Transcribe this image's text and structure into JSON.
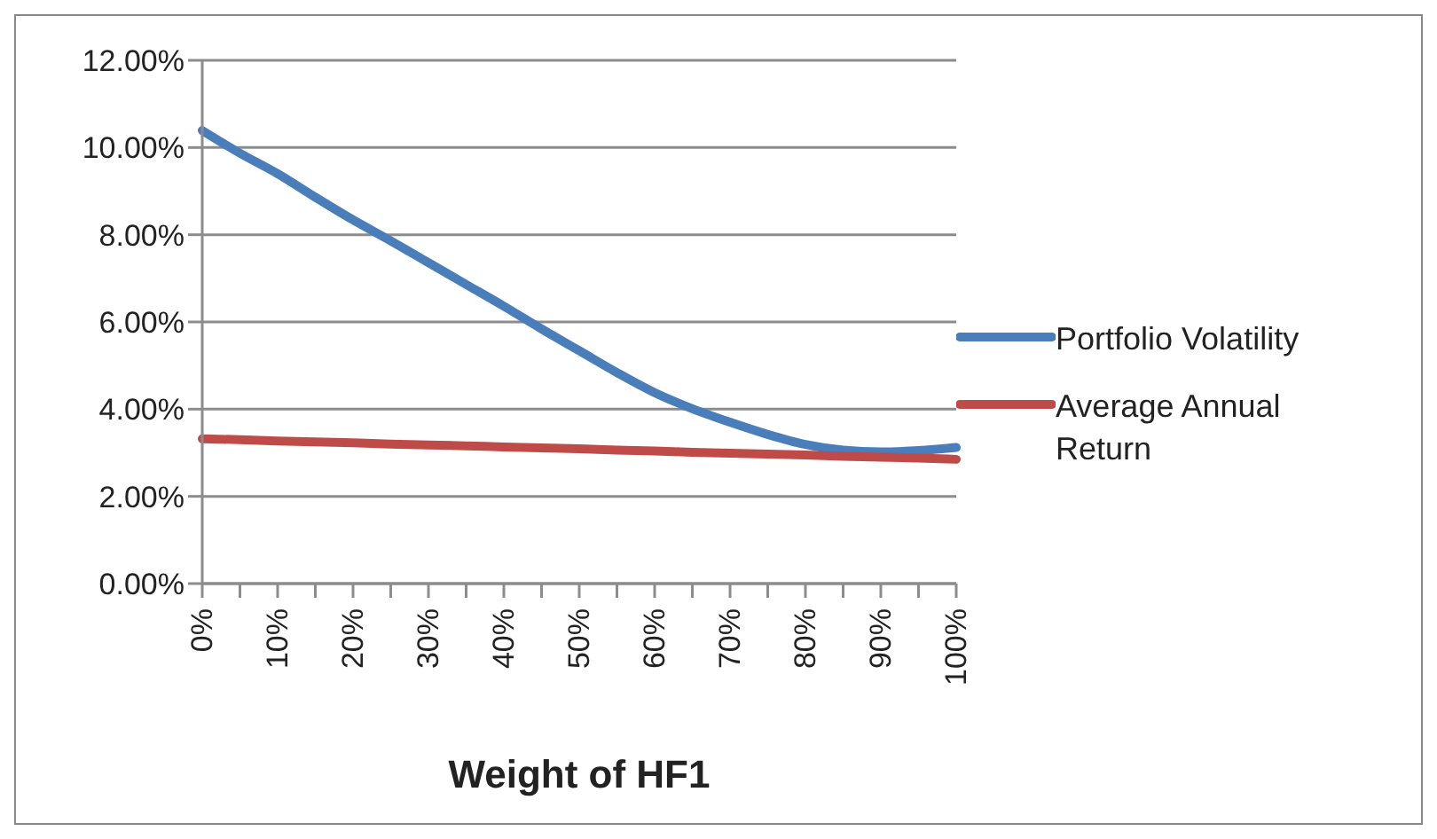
{
  "chart_data": {
    "type": "line",
    "xlabel": "Weight of HF1",
    "categories": [
      "0%",
      null,
      "10%",
      null,
      "20%",
      null,
      "30%",
      null,
      "40%",
      null,
      "50%",
      null,
      "60%",
      null,
      "70%",
      null,
      "80%",
      null,
      "90%",
      null,
      "100%"
    ],
    "series": [
      {
        "name": "Portfolio Volatility",
        "color": "#4a7ebb",
        "values": [
          10.39,
          9.87,
          9.4,
          8.86,
          8.34,
          7.86,
          7.36,
          6.86,
          6.36,
          5.84,
          5.34,
          4.84,
          4.38,
          4.01,
          3.7,
          3.42,
          3.19,
          3.06,
          3.02,
          3.05,
          3.12
        ]
      },
      {
        "name": "Average Annual Return",
        "color": "#be4b48",
        "values": [
          3.32,
          3.3,
          3.27,
          3.25,
          3.23,
          3.2,
          3.18,
          3.16,
          3.13,
          3.11,
          3.09,
          3.06,
          3.04,
          3.01,
          2.99,
          2.97,
          2.95,
          2.92,
          2.9,
          2.88,
          2.85
        ]
      }
    ],
    "ylim": [
      0,
      12
    ],
    "yticks": [
      {
        "value": 0,
        "label": "0.00%"
      },
      {
        "value": 2,
        "label": "2.00%"
      },
      {
        "value": 4,
        "label": "4.00%"
      },
      {
        "value": 6,
        "label": "6.00%"
      },
      {
        "value": 8,
        "label": "8.00%"
      },
      {
        "value": 10,
        "label": "10.00%"
      },
      {
        "value": 12,
        "label": "12.00%"
      }
    ],
    "grid": "y",
    "legend": "right",
    "marker": "none",
    "line_style": "solid"
  }
}
